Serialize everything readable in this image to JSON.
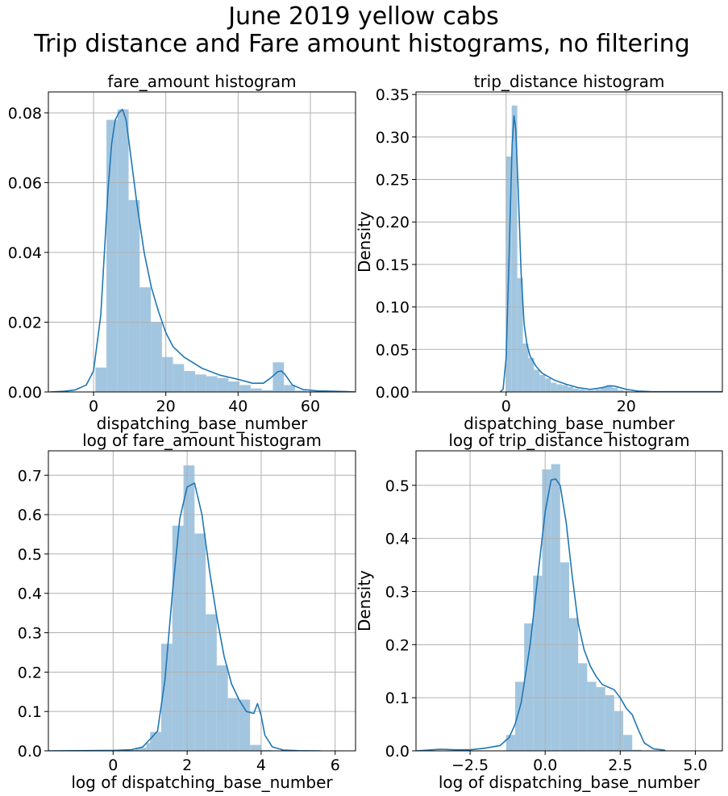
{
  "suptitle": {
    "line1": "June 2019 yellow cabs",
    "line2": "Trip distance and Fare amount histograms, no filtering"
  },
  "colors": {
    "hist": "#a3c6e0",
    "kde": "#1f77b4",
    "grid": "#b0b0b0"
  },
  "chart_data": [
    {
      "type": "bar",
      "title": "fare_amount histogram",
      "xlabel": "dispatching_base_number",
      "ylabel": "",
      "xlim": [
        -12.5,
        72.5
      ],
      "ylim": [
        0,
        0.086
      ],
      "xticks": [
        0,
        20,
        40,
        60
      ],
      "xtick_labels": [
        "0",
        "20",
        "40",
        "60"
      ],
      "yticks": [
        0,
        0.02,
        0.04,
        0.06,
        0.08
      ],
      "ytick_labels": [
        "0.00",
        "0.02",
        "0.04",
        "0.06",
        "0.08"
      ],
      "grid": true,
      "bins": {
        "edges": [
          0.5,
          3.57,
          6.64,
          9.71,
          12.78,
          15.85,
          18.92,
          21.99,
          25.06,
          28.13,
          31.2,
          34.27,
          37.34,
          40.41,
          43.48,
          46.55,
          49.62,
          52.69,
          55.76,
          58.83,
          61.9,
          64.97,
          68.04
        ],
        "values": [
          0.007,
          0.078,
          0.081,
          0.055,
          0.03,
          0.02,
          0.01,
          0.008,
          0.006,
          0.005,
          0.0045,
          0.004,
          0.003,
          0.002,
          0.001,
          0.0005,
          0.0085,
          0.002,
          0.0004,
          0.0002,
          0.0001,
          0.0001
        ]
      },
      "kde": {
        "x": [
          -12,
          -8,
          -5,
          -2,
          0,
          2,
          3,
          4,
          5,
          6,
          7,
          8,
          9,
          10,
          12,
          14,
          16,
          18,
          20,
          22,
          25,
          30,
          35,
          40,
          44,
          47,
          49,
          51,
          52,
          53,
          55,
          58,
          62,
          66,
          70,
          72.5
        ],
        "y": [
          0,
          0.0002,
          0.0006,
          0.002,
          0.006,
          0.022,
          0.04,
          0.058,
          0.071,
          0.078,
          0.08,
          0.081,
          0.078,
          0.07,
          0.054,
          0.04,
          0.03,
          0.023,
          0.017,
          0.013,
          0.01,
          0.0068,
          0.0048,
          0.0036,
          0.0025,
          0.0025,
          0.004,
          0.0058,
          0.006,
          0.005,
          0.002,
          0.0007,
          0.0003,
          0.0002,
          0.0001,
          0
        ]
      }
    },
    {
      "type": "bar",
      "title": "trip_distance histogram",
      "xlabel": "dispatching_base_number",
      "ylabel": "Density",
      "xlim": [
        -15,
        36
      ],
      "ylim": [
        0,
        0.353
      ],
      "xticks": [
        0,
        20
      ],
      "xtick_labels": [
        "0",
        "20"
      ],
      "yticks": [
        0,
        0.05,
        0.1,
        0.15,
        0.2,
        0.25,
        0.3,
        0.35
      ],
      "ytick_labels": [
        "0.00",
        "0.05",
        "0.10",
        "0.15",
        "0.20",
        "0.25",
        "0.30",
        "0.35"
      ],
      "grid": true,
      "bins": {
        "edges": [
          0,
          0.93,
          1.86,
          2.79,
          3.72,
          4.65,
          5.58,
          6.51,
          7.44,
          8.37,
          9.3,
          10.23,
          11.16,
          12.09,
          13.02,
          13.95,
          14.88,
          15.81,
          16.74,
          17.67,
          18.6,
          19.53,
          20.46,
          21.39
        ],
        "values": [
          0.277,
          0.337,
          0.134,
          0.057,
          0.04,
          0.026,
          0.02,
          0.016,
          0.011,
          0.009,
          0.008,
          0.006,
          0.004,
          0.003,
          0.002,
          0.002,
          0.003,
          0.006,
          0.008,
          0.005,
          0.002,
          0.001,
          0.0005
        ]
      },
      "kde": {
        "x": [
          -1,
          -0.5,
          0,
          0.5,
          1,
          1.3,
          1.6,
          2,
          2.5,
          3,
          3.5,
          4,
          5,
          6,
          8,
          10,
          12,
          14,
          16,
          17,
          18,
          19,
          20,
          22,
          24,
          36
        ],
        "y": [
          0.0,
          0.003,
          0.04,
          0.16,
          0.29,
          0.325,
          0.31,
          0.24,
          0.14,
          0.08,
          0.055,
          0.042,
          0.03,
          0.022,
          0.014,
          0.009,
          0.005,
          0.003,
          0.005,
          0.007,
          0.007,
          0.005,
          0.003,
          0.001,
          0.0004,
          0.0003
        ]
      }
    },
    {
      "type": "bar",
      "title": "log of fare_amount histogram",
      "xlabel": "log of dispatching_base_number",
      "ylabel": "",
      "xlim": [
        -1.75,
        6.55
      ],
      "ylim": [
        0,
        0.762
      ],
      "xticks": [
        0,
        2,
        4,
        6
      ],
      "xtick_labels": [
        "0",
        "2",
        "4",
        "6"
      ],
      "yticks": [
        0,
        0.1,
        0.2,
        0.3,
        0.4,
        0.5,
        0.6,
        0.7
      ],
      "ytick_labels": [
        "0.0",
        "0.1",
        "0.2",
        "0.3",
        "0.4",
        "0.5",
        "0.6",
        "0.7"
      ],
      "grid": true,
      "bins": {
        "edges": [
          0,
          0.3,
          0.6,
          0.9,
          1.0,
          1.3,
          1.6,
          1.9,
          2.2,
          2.5,
          2.8,
          3.1,
          3.4,
          3.7,
          4.0,
          4.3
        ],
        "values": [
          0.001,
          0.002,
          0.008,
          0.02,
          0.048,
          0.272,
          0.572,
          0.725,
          0.552,
          0.347,
          0.217,
          0.134,
          0.13,
          0.015,
          0.002
        ]
      },
      "kde": {
        "x": [
          -1.75,
          -1,
          0,
          0.5,
          0.8,
          1.0,
          1.2,
          1.4,
          1.6,
          1.8,
          2.0,
          2.2,
          2.4,
          2.6,
          2.8,
          3.0,
          3.2,
          3.4,
          3.6,
          3.8,
          3.9,
          4.0,
          4.1,
          4.3,
          4.6,
          5.0,
          5.6
        ],
        "y": [
          0,
          0.0005,
          0.001,
          0.003,
          0.01,
          0.03,
          0.05,
          0.18,
          0.4,
          0.59,
          0.67,
          0.68,
          0.6,
          0.46,
          0.34,
          0.24,
          0.17,
          0.13,
          0.1,
          0.095,
          0.12,
          0.09,
          0.04,
          0.01,
          0.002,
          0.0005,
          0
        ]
      }
    },
    {
      "type": "bar",
      "title": "log of trip_distance histogram",
      "xlabel": "log of dispatching_base_number",
      "ylabel": "Density",
      "xlim": [
        -4.3,
        5.9
      ],
      "ylim": [
        0,
        0.565
      ],
      "xticks": [
        -2.5,
        0,
        2.5,
        5.0
      ],
      "xtick_labels": [
        "−2.5",
        "0.0",
        "2.5",
        "5.0"
      ],
      "yticks": [
        0,
        0.1,
        0.2,
        0.3,
        0.4,
        0.5
      ],
      "ytick_labels": [
        "0.0",
        "0.1",
        "0.2",
        "0.3",
        "0.4",
        "0.5"
      ],
      "grid": true,
      "bins": {
        "edges": [
          -1.3,
          -1.0,
          -0.7,
          -0.4,
          -0.1,
          0.2,
          0.5,
          0.8,
          1.1,
          1.4,
          1.7,
          2.0,
          2.3,
          2.6,
          2.9,
          3.2
        ],
        "values": [
          0.03,
          0.13,
          0.24,
          0.33,
          0.53,
          0.54,
          0.355,
          0.25,
          0.165,
          0.13,
          0.12,
          0.105,
          0.075,
          0.03,
          0.002
        ]
      },
      "kde": {
        "x": [
          -4.3,
          -3.5,
          -3.0,
          -2.5,
          -2.0,
          -1.5,
          -1.2,
          -1.0,
          -0.8,
          -0.5,
          -0.2,
          0.0,
          0.2,
          0.35,
          0.5,
          0.7,
          0.9,
          1.1,
          1.3,
          1.5,
          1.7,
          1.9,
          2.1,
          2.3,
          2.5,
          2.7,
          2.9,
          3.1,
          3.3,
          3.6,
          4.0
        ],
        "y": [
          0,
          0.003,
          0.002,
          0.002,
          0.005,
          0.01,
          0.025,
          0.05,
          0.09,
          0.2,
          0.35,
          0.45,
          0.51,
          0.512,
          0.5,
          0.43,
          0.33,
          0.24,
          0.19,
          0.16,
          0.14,
          0.125,
          0.12,
          0.115,
          0.1,
          0.08,
          0.068,
          0.04,
          0.015,
          0.004,
          0.001
        ]
      }
    }
  ]
}
